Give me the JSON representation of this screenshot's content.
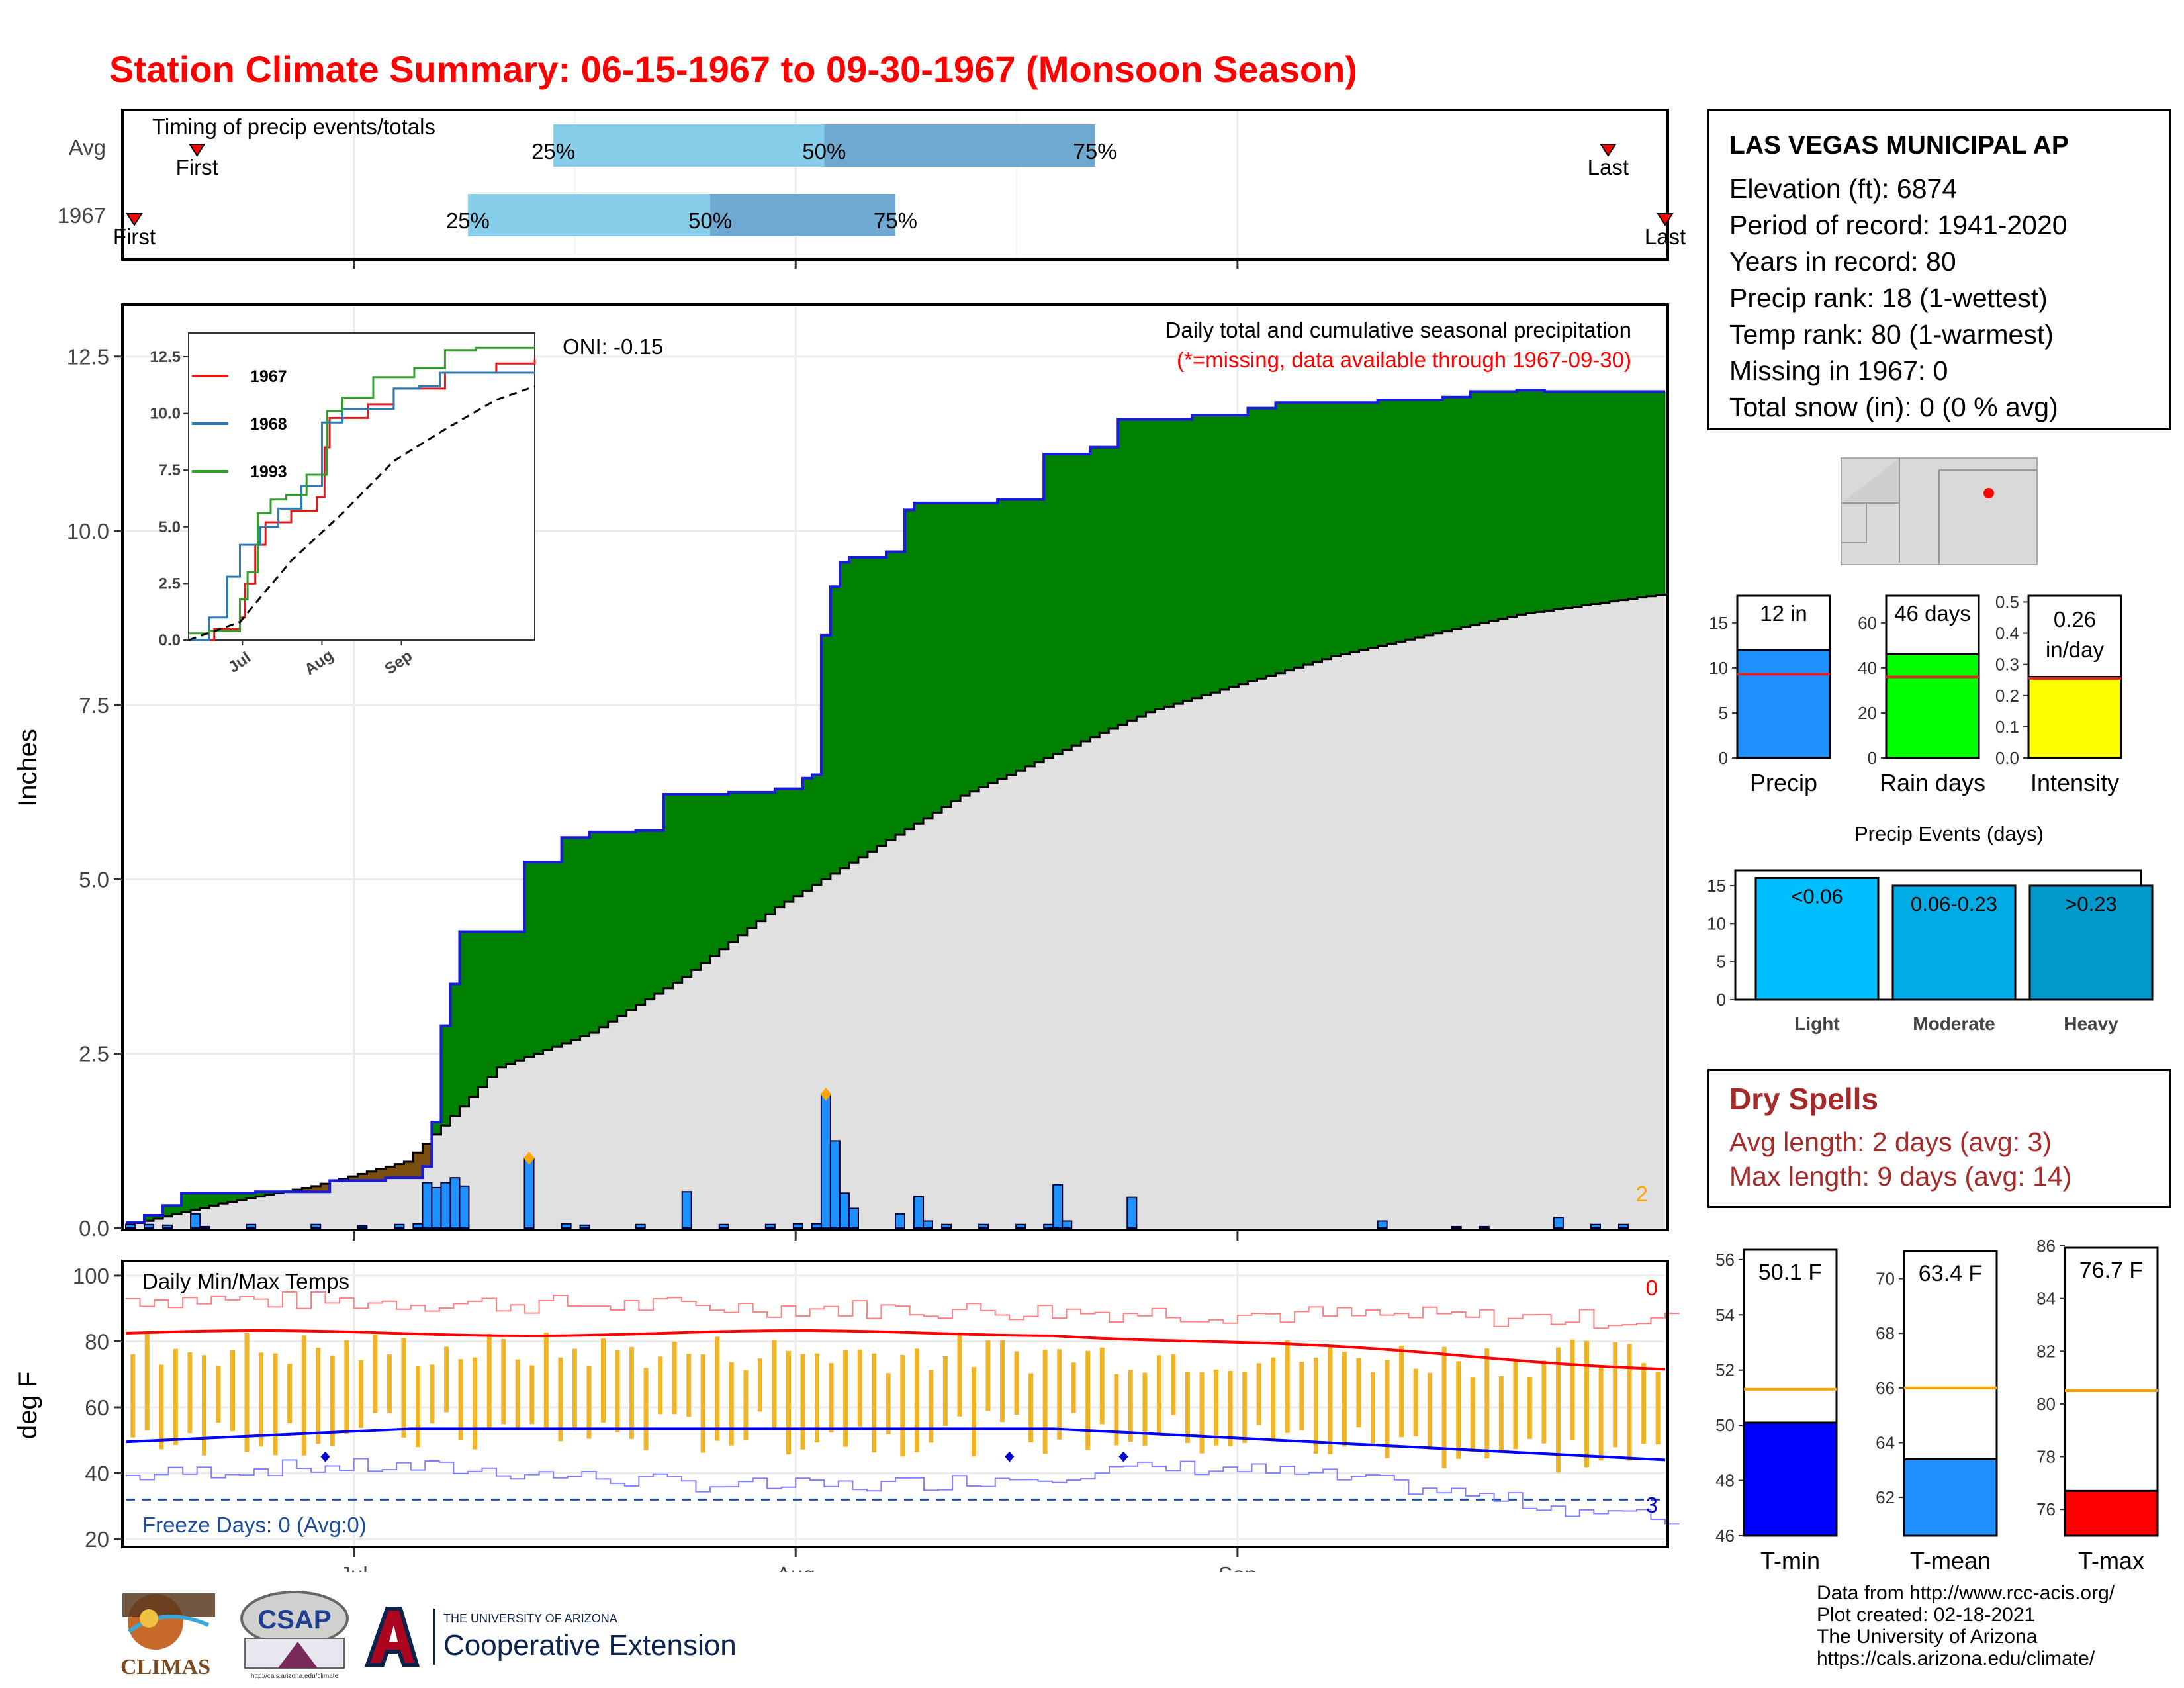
{
  "title": "Station Climate Summary: 06-15-1967 to 09-30-1967 (Monsoon Season)",
  "timing": {
    "label": "Timing of precip events/totals",
    "rows": [
      {
        "name": "Avg",
        "first": "First",
        "last": "Last",
        "first_day": 5,
        "last_day": 104,
        "p25_day": 30,
        "p50_day": 49,
        "p75_day": 68
      },
      {
        "name": "1967",
        "first": "First",
        "last": "Last",
        "first_day": 0,
        "last_day": 108,
        "p25_day": 24,
        "p50_day": 41,
        "p75_day": 54
      }
    ],
    "p25_label": "25%",
    "p50_label": "50%",
    "p75_label": "75%"
  },
  "precip_panel": {
    "ylabel": "Inches",
    "yticks": [
      "0.0",
      "2.5",
      "5.0",
      "7.5",
      "10.0",
      "12.5"
    ],
    "ylim": [
      0,
      13.2
    ],
    "oni": "ONI: -0.15",
    "legend_title": "Daily total and cumulative seasonal precipitation",
    "legend_note": "(*=missing, data available through 1967-09-30)",
    "missing_count": "2",
    "month_labels": [
      "Jul",
      "Aug",
      "Sep"
    ]
  },
  "chart_data": {
    "type": "area",
    "title": "Daily total and cumulative seasonal precipitation",
    "ylabel": "Inches",
    "x_unit": "day of season (0 = Jun 15)",
    "ylim": [
      0,
      13.2
    ],
    "cumulative_1967": [
      [
        0,
        0.08
      ],
      [
        2,
        0.18
      ],
      [
        4,
        0.32
      ],
      [
        6,
        0.5
      ],
      [
        14,
        0.52
      ],
      [
        22,
        0.68
      ],
      [
        28,
        0.72
      ],
      [
        32,
        0.88
      ],
      [
        33,
        1.52
      ],
      [
        34,
        2.9
      ],
      [
        35,
        3.5
      ],
      [
        36,
        4.25
      ],
      [
        43,
        5.25
      ],
      [
        47,
        5.6
      ],
      [
        50,
        5.68
      ],
      [
        55,
        5.7
      ],
      [
        58,
        6.22
      ],
      [
        65,
        6.25
      ],
      [
        70,
        6.3
      ],
      [
        73,
        6.45
      ],
      [
        74,
        6.5
      ],
      [
        75,
        8.5
      ],
      [
        76,
        9.2
      ],
      [
        77,
        9.55
      ],
      [
        78,
        9.62
      ],
      [
        82,
        9.7
      ],
      [
        84,
        10.3
      ],
      [
        85,
        10.4
      ],
      [
        94,
        10.45
      ],
      [
        99,
        11.1
      ],
      [
        104,
        11.2
      ],
      [
        107,
        11.6
      ],
      [
        115,
        11.66
      ],
      [
        121,
        11.76
      ],
      [
        124,
        11.84
      ],
      [
        135,
        11.88
      ],
      [
        142,
        11.92
      ],
      [
        145,
        12.0
      ],
      [
        150,
        12.02
      ],
      [
        153,
        12.0
      ],
      [
        166,
        12.0
      ]
    ],
    "cumulative_avg": [
      [
        0,
        0.04
      ],
      [
        10,
        0.35
      ],
      [
        20,
        0.6
      ],
      [
        30,
        0.95
      ],
      [
        35,
        1.6
      ],
      [
        40,
        2.3
      ],
      [
        50,
        2.8
      ],
      [
        60,
        3.6
      ],
      [
        70,
        4.6
      ],
      [
        80,
        5.4
      ],
      [
        90,
        6.2
      ],
      [
        100,
        6.8
      ],
      [
        110,
        7.4
      ],
      [
        120,
        7.8
      ],
      [
        130,
        8.2
      ],
      [
        140,
        8.5
      ],
      [
        150,
        8.8
      ],
      [
        166,
        9.1
      ]
    ],
    "daily_1967": [
      [
        0,
        0.05
      ],
      [
        2,
        0.05
      ],
      [
        4,
        0.04
      ],
      [
        7,
        0.2
      ],
      [
        8,
        0.02
      ],
      [
        13,
        0.05
      ],
      [
        20,
        0.05
      ],
      [
        25,
        0.03
      ],
      [
        29,
        0.05
      ],
      [
        31,
        0.06
      ],
      [
        32,
        0.65
      ],
      [
        33,
        0.58
      ],
      [
        34,
        0.65
      ],
      [
        35,
        0.72
      ],
      [
        36,
        0.6
      ],
      [
        43,
        1.0
      ],
      [
        47,
        0.06
      ],
      [
        49,
        0.04
      ],
      [
        55,
        0.05
      ],
      [
        60,
        0.52
      ],
      [
        64,
        0.05
      ],
      [
        69,
        0.05
      ],
      [
        72,
        0.06
      ],
      [
        74,
        0.06
      ],
      [
        75,
        1.92
      ],
      [
        76,
        1.25
      ],
      [
        77,
        0.5
      ],
      [
        78,
        0.28
      ],
      [
        83,
        0.2
      ],
      [
        85,
        0.45
      ],
      [
        86,
        0.1
      ],
      [
        88,
        0.05
      ],
      [
        92,
        0.05
      ],
      [
        96,
        0.05
      ],
      [
        99,
        0.05
      ],
      [
        100,
        0.62
      ],
      [
        101,
        0.1
      ],
      [
        108,
        0.44
      ],
      [
        135,
        0.1
      ],
      [
        143,
        0.02
      ],
      [
        146,
        0.02
      ],
      [
        154,
        0.15
      ],
      [
        158,
        0.05
      ],
      [
        161,
        0.05
      ]
    ],
    "max_markers": [
      [
        43,
        1.0
      ],
      [
        75,
        1.92
      ]
    ],
    "inset": {
      "series": [
        {
          "name": "1967",
          "color": "#e31a1c",
          "values": [
            [
              0,
              0
            ],
            [
              10,
              0.5
            ],
            [
              20,
              1.0
            ],
            [
              22,
              2.5
            ],
            [
              26,
              4.2
            ],
            [
              30,
              5.2
            ],
            [
              40,
              5.7
            ],
            [
              50,
              6.3
            ],
            [
              53,
              8.5
            ],
            [
              55,
              9.8
            ],
            [
              70,
              10.4
            ],
            [
              80,
              11.1
            ],
            [
              100,
              11.8
            ],
            [
              120,
              12.2
            ],
            [
              135,
              12.4
            ]
          ]
        },
        {
          "name": "1968",
          "color": "#2b7bba",
          "values": [
            [
              0,
              0
            ],
            [
              8,
              1.0
            ],
            [
              15,
              2.8
            ],
            [
              20,
              4.2
            ],
            [
              28,
              5.0
            ],
            [
              35,
              5.8
            ],
            [
              44,
              6.8
            ],
            [
              52,
              9.6
            ],
            [
              60,
              10.2
            ],
            [
              80,
              11.1
            ],
            [
              90,
              11.2
            ],
            [
              98,
              11.8
            ],
            [
              135,
              11.8
            ]
          ]
        },
        {
          "name": "1993",
          "color": "#33a02c",
          "values": [
            [
              0,
              0.3
            ],
            [
              8,
              0.4
            ],
            [
              20,
              1.8
            ],
            [
              23,
              3.0
            ],
            [
              27,
              5.6
            ],
            [
              32,
              6.2
            ],
            [
              38,
              6.4
            ],
            [
              46,
              7.3
            ],
            [
              54,
              10.1
            ],
            [
              60,
              10.7
            ],
            [
              72,
              11.6
            ],
            [
              88,
              12.0
            ],
            [
              100,
              12.8
            ],
            [
              112,
              12.9
            ],
            [
              135,
              12.9
            ]
          ]
        },
        {
          "name": "avg",
          "color": "#000000",
          "values": [
            [
              0,
              0
            ],
            [
              20,
              0.8
            ],
            [
              40,
              3.5
            ],
            [
              60,
              5.6
            ],
            [
              80,
              7.9
            ],
            [
              100,
              9.3
            ],
            [
              120,
              10.6
            ],
            [
              135,
              11.2
            ]
          ]
        }
      ],
      "yticks": [
        "0.0",
        "2.5",
        "5.0",
        "7.5",
        "10.0",
        "12.5"
      ],
      "month_labels": [
        "Jul",
        "Aug",
        "Sep"
      ]
    }
  },
  "temp_panel": {
    "ylabel": "deg F",
    "title": "Daily Min/Max Temps",
    "yticks": [
      "20",
      "40",
      "60",
      "80",
      "100"
    ],
    "freeze": "Freeze Days: 0 (Avg:0)",
    "count_top": "0",
    "count_bottom": "3",
    "month_labels": [
      "Jul",
      "Aug",
      "Sep"
    ]
  },
  "station": {
    "name": "LAS VEGAS MUNICIPAL AP",
    "lines": [
      "Elevation (ft): 6874",
      "Period of record: 1941-2020",
      "Years in record: 80",
      "Precip rank: 18 (1-wettest)",
      "Temp rank: 80 (1-warmest)",
      "Missing in 1967: 0",
      "Total snow (in): 0 (0 % avg)"
    ]
  },
  "mini_bars": [
    {
      "label": "Precip",
      "value_text": "12 in",
      "value": 12,
      "avg": 9.3,
      "ymax": 18,
      "yticks": [
        "0",
        "5",
        "10",
        "15"
      ],
      "color": "#1e90ff"
    },
    {
      "label": "Rain days",
      "value_text": "46 days",
      "value": 46,
      "avg": 36,
      "ymax": 72,
      "yticks": [
        "0",
        "20",
        "40",
        "60"
      ],
      "color": "#00ff00"
    },
    {
      "label": "Intensity",
      "value_text_1": "0.26",
      "value_text_2": "in/day",
      "value": 0.26,
      "avg": 0.255,
      "ymax": 0.52,
      "yticks": [
        "0.0",
        "0.1",
        "0.2",
        "0.3",
        "0.4",
        "0.5"
      ],
      "color": "#ffff00"
    }
  ],
  "events": {
    "title": "Precip Events (days)",
    "yticks": [
      "0",
      "5",
      "10",
      "15"
    ],
    "bars": [
      {
        "cat": "Light",
        "label": "<0.06",
        "value": 16,
        "color": "#00bfff"
      },
      {
        "cat": "Moderate",
        "label": "0.06-0.23",
        "value": 15,
        "color": "#00ace6"
      },
      {
        "cat": "Heavy",
        "label": ">0.23",
        "value": 15,
        "color": "#0099cc"
      }
    ]
  },
  "dry_spells": {
    "title": "Dry Spells",
    "avg": "Avg length: 2 days (avg: 3)",
    "max": "Max length: 9 days (avg: 14)"
  },
  "temp_bars": [
    {
      "label": "T-min",
      "value_text": "50.1 F",
      "value": 50.1,
      "avg": 51.3,
      "ymin": 46,
      "ymax": 56.5,
      "yticks": [
        "46",
        "48",
        "50",
        "52",
        "54",
        "56"
      ],
      "color": "#0000ff"
    },
    {
      "label": "T-mean",
      "value_text": "63.4 F",
      "value": 63.4,
      "avg": 66,
      "ymin": 60.6,
      "ymax": 71.2,
      "yticks": [
        "62",
        "64",
        "66",
        "68",
        "70"
      ],
      "color": "#1e90ff"
    },
    {
      "label": "T-max",
      "value_text": "76.7 F",
      "value": 76.7,
      "avg": 80.5,
      "ymin": 75,
      "ymax": 86,
      "yticks": [
        "76",
        "78",
        "80",
        "82",
        "84",
        "86"
      ],
      "color": "#ff0000"
    }
  ],
  "credits": [
    "Data from http://www.rcc-acis.org/",
    "Plot created: 02-18-2021",
    "The University of Arizona",
    "https://cals.arizona.edu/climate/"
  ],
  "logos": {
    "climas": "CLIMAS",
    "csap": "CSAP",
    "csap_url": "http://cals.arizona.edu/climate",
    "ua_line1": "THE UNIVERSITY OF ARIZONA",
    "ua_line2": "Cooperative Extension"
  }
}
